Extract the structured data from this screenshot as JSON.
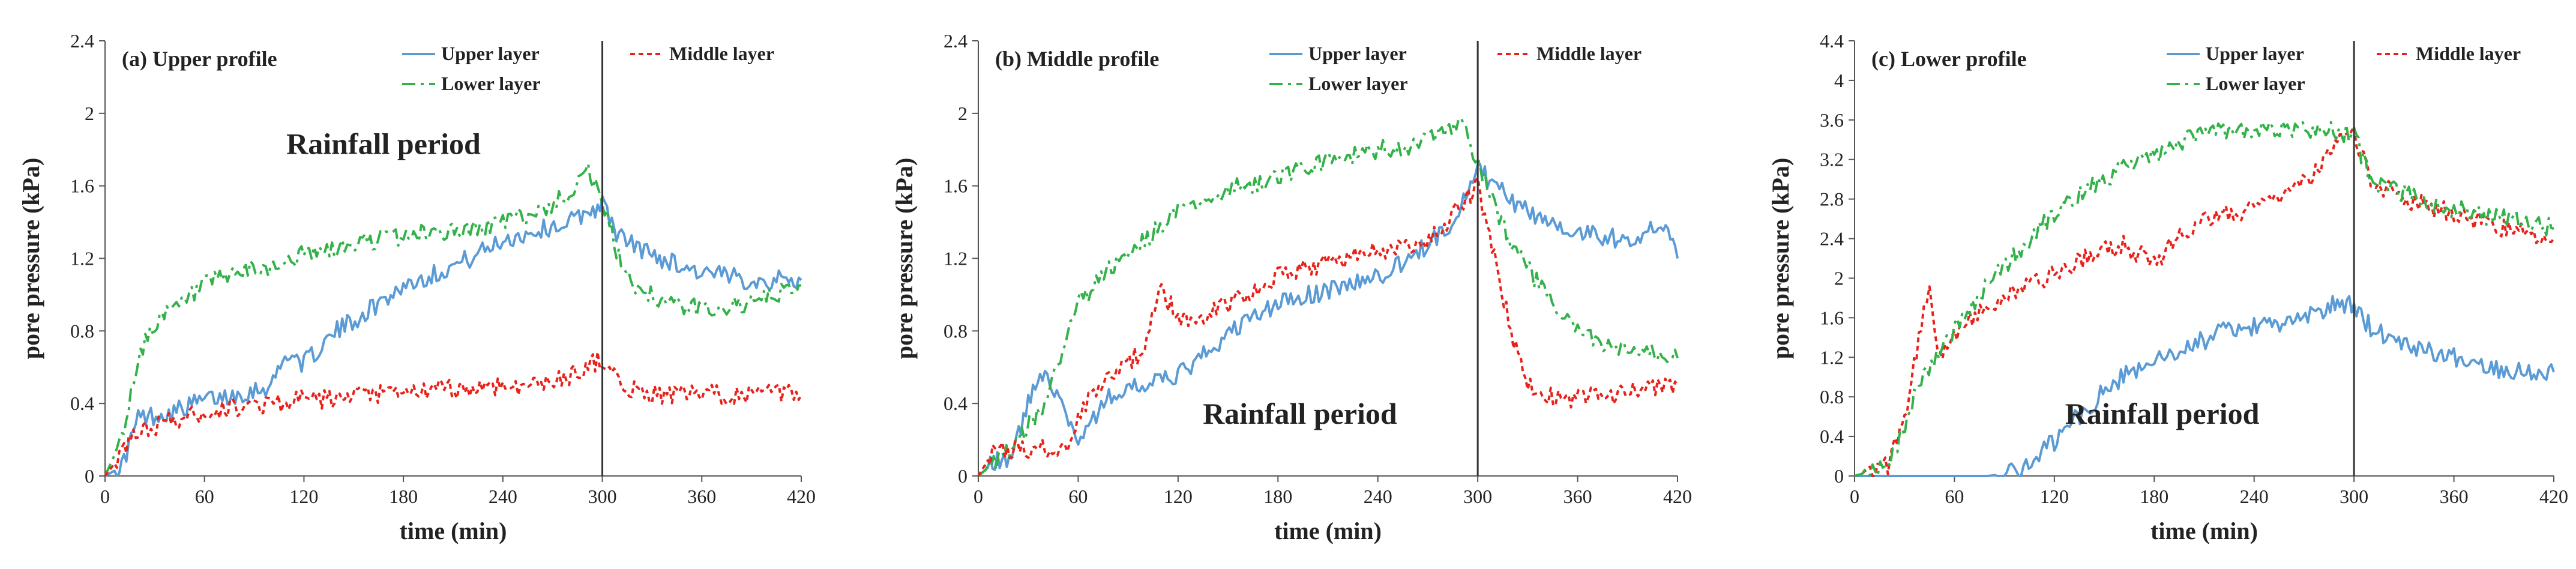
{
  "chart_data": [
    {
      "type": "line",
      "title": "(a)  Upper profile",
      "xlabel": "time (min)",
      "ylabel": "pore pressure (kPa)",
      "xlim": [
        0,
        420
      ],
      "ylim": [
        0,
        2.4
      ],
      "xticks": [
        0,
        60,
        120,
        180,
        240,
        300,
        360,
        420
      ],
      "yticks": [
        0,
        0.4,
        0.8,
        1.2,
        1.6,
        2,
        2.4
      ],
      "ytick_labels": [
        "0",
        "0.4",
        "0.8",
        "1.2",
        "1.6",
        "2",
        "2.4"
      ],
      "vline": 300,
      "annotation": "Rainfall period",
      "annotation_position": "upper-middle",
      "series": [
        {
          "name": "Upper layer",
          "color": "#5b9bd5",
          "style": "solid",
          "x": [
            0,
            10,
            20,
            40,
            60,
            80,
            100,
            110,
            120,
            140,
            160,
            180,
            200,
            220,
            240,
            260,
            280,
            290,
            300,
            310,
            330,
            360,
            390,
            420
          ],
          "y": [
            0,
            0.05,
            0.32,
            0.35,
            0.42,
            0.45,
            0.5,
            0.68,
            0.62,
            0.8,
            0.92,
            1.05,
            1.12,
            1.2,
            1.3,
            1.35,
            1.4,
            1.45,
            1.5,
            1.32,
            1.22,
            1.12,
            1.08,
            1.08
          ]
        },
        {
          "name": "Lower layer",
          "color": "#33b24a",
          "style": "dashdot",
          "x": [
            0,
            10,
            20,
            30,
            40,
            60,
            80,
            100,
            120,
            140,
            160,
            180,
            200,
            220,
            240,
            260,
            280,
            290,
            300,
            310,
            320,
            340,
            360,
            390,
            420
          ],
          "y": [
            0,
            0.2,
            0.65,
            0.85,
            0.9,
            1.05,
            1.12,
            1.15,
            1.22,
            1.25,
            1.3,
            1.32,
            1.35,
            1.35,
            1.4,
            1.45,
            1.55,
            1.72,
            1.5,
            1.2,
            1.05,
            0.95,
            0.92,
            0.95,
            1.05
          ]
        },
        {
          "name": "Middle layer",
          "color": "#e8221b",
          "style": "dotted",
          "x": [
            0,
            10,
            20,
            40,
            60,
            80,
            100,
            120,
            140,
            160,
            180,
            200,
            220,
            240,
            260,
            280,
            290,
            300,
            310,
            330,
            360,
            390,
            420
          ],
          "y": [
            0,
            0.12,
            0.25,
            0.3,
            0.35,
            0.38,
            0.4,
            0.42,
            0.42,
            0.45,
            0.45,
            0.48,
            0.48,
            0.5,
            0.5,
            0.55,
            0.6,
            0.65,
            0.5,
            0.45,
            0.45,
            0.45,
            0.45
          ]
        }
      ]
    },
    {
      "type": "line",
      "title": "(b)  Middle profile",
      "xlabel": "time (min)",
      "ylabel": "pore pressure (kPa)",
      "xlim": [
        0,
        420
      ],
      "ylim": [
        0,
        2.4
      ],
      "xticks": [
        0,
        60,
        120,
        180,
        240,
        300,
        360,
        420
      ],
      "yticks": [
        0,
        0.4,
        0.8,
        1.2,
        1.6,
        2,
        2.4
      ],
      "ytick_labels": [
        "0",
        "0.4",
        "0.8",
        "1.2",
        "1.6",
        "2",
        "2.4"
      ],
      "vline": 300,
      "annotation": "Rainfall period",
      "annotation_position": "lower-middle",
      "series": [
        {
          "name": "Upper layer",
          "color": "#5b9bd5",
          "style": "solid",
          "x": [
            0,
            10,
            20,
            30,
            40,
            50,
            60,
            80,
            100,
            120,
            140,
            160,
            180,
            200,
            220,
            240,
            260,
            280,
            290,
            300,
            310,
            330,
            360,
            390,
            410,
            420
          ],
          "y": [
            0,
            0.08,
            0.1,
            0.4,
            0.6,
            0.4,
            0.2,
            0.45,
            0.5,
            0.55,
            0.7,
            0.85,
            0.95,
            1.0,
            1.05,
            1.1,
            1.2,
            1.35,
            1.5,
            1.7,
            1.6,
            1.45,
            1.35,
            1.3,
            1.4,
            1.2
          ]
        },
        {
          "name": "Lower layer",
          "color": "#33b24a",
          "style": "dashdot",
          "x": [
            0,
            20,
            40,
            60,
            80,
            100,
            120,
            140,
            160,
            180,
            200,
            220,
            240,
            260,
            280,
            290,
            300,
            310,
            320,
            340,
            360,
            380,
            400,
            420
          ],
          "y": [
            0,
            0.15,
            0.4,
            0.95,
            1.15,
            1.3,
            1.45,
            1.55,
            1.6,
            1.65,
            1.72,
            1.75,
            1.8,
            1.82,
            1.88,
            1.95,
            1.72,
            1.5,
            1.3,
            1.0,
            0.8,
            0.7,
            0.68,
            0.65
          ]
        },
        {
          "name": "Middle layer",
          "color": "#e8221b",
          "style": "dotted",
          "x": [
            0,
            10,
            40,
            55,
            60,
            80,
            100,
            110,
            120,
            140,
            160,
            180,
            200,
            220,
            240,
            260,
            280,
            290,
            300,
            310,
            320,
            330,
            350,
            380,
            420
          ],
          "y": [
            0,
            0.15,
            0.15,
            0.15,
            0.35,
            0.55,
            0.7,
            1.05,
            0.85,
            0.9,
            1.0,
            1.1,
            1.15,
            1.2,
            1.25,
            1.25,
            1.35,
            1.5,
            1.6,
            1.2,
            0.8,
            0.5,
            0.42,
            0.45,
            0.5
          ]
        }
      ]
    },
    {
      "type": "line",
      "title": "(c)  Lower profile",
      "xlabel": "time (min)",
      "ylabel": "pore pressure (kPa)",
      "xlim": [
        0,
        420
      ],
      "ylim": [
        0,
        4.4
      ],
      "xticks": [
        0,
        60,
        120,
        180,
        240,
        300,
        360,
        420
      ],
      "yticks": [
        0,
        0.4,
        0.8,
        1.2,
        1.6,
        2,
        2.4,
        2.8,
        3.2,
        3.6,
        4,
        4.4
      ],
      "ytick_labels": [
        "0",
        "0.4",
        "0.8",
        "1.2",
        "1.6",
        "2",
        "2.4",
        "2.8",
        "3.2",
        "3.6",
        "4",
        "4.4"
      ],
      "vline": 300,
      "annotation": "Rainfall period",
      "annotation_position": "lower-middle",
      "series": [
        {
          "name": "Upper layer",
          "color": "#5b9bd5",
          "style": "solid",
          "x": [
            0,
            80,
            90,
            100,
            120,
            140,
            160,
            180,
            200,
            220,
            240,
            260,
            280,
            290,
            300,
            310,
            330,
            360,
            390,
            420
          ],
          "y": [
            0,
            0,
            0.02,
            0.05,
            0.35,
            0.7,
            1.0,
            1.15,
            1.3,
            1.45,
            1.5,
            1.55,
            1.65,
            1.75,
            1.72,
            1.5,
            1.35,
            1.2,
            1.08,
            1.05
          ]
        },
        {
          "name": "Middle layer",
          "color": "#e8221b",
          "style": "dotted",
          "x": [
            0,
            20,
            30,
            40,
            45,
            50,
            60,
            80,
            100,
            120,
            140,
            160,
            180,
            200,
            220,
            240,
            260,
            280,
            290,
            300,
            310,
            330,
            360,
            390,
            420
          ],
          "y": [
            0,
            0.1,
            0.6,
            1.5,
            2.0,
            1.2,
            1.45,
            1.7,
            1.9,
            2.05,
            2.2,
            2.35,
            2.15,
            2.5,
            2.65,
            2.7,
            2.85,
            3.1,
            3.35,
            3.45,
            3.0,
            2.8,
            2.65,
            2.5,
            2.4
          ]
        },
        {
          "name": "Lower layer",
          "color": "#33b24a",
          "style": "dashdot",
          "x": [
            0,
            20,
            30,
            40,
            60,
            80,
            100,
            120,
            140,
            160,
            180,
            200,
            220,
            240,
            260,
            280,
            300,
            310,
            330,
            360,
            390,
            420
          ],
          "y": [
            0,
            0.1,
            0.5,
            1.0,
            1.5,
            1.95,
            2.3,
            2.65,
            2.9,
            3.1,
            3.25,
            3.4,
            3.5,
            3.48,
            3.5,
            3.5,
            3.45,
            3.0,
            2.85,
            2.7,
            2.6,
            2.5
          ]
        }
      ]
    }
  ]
}
